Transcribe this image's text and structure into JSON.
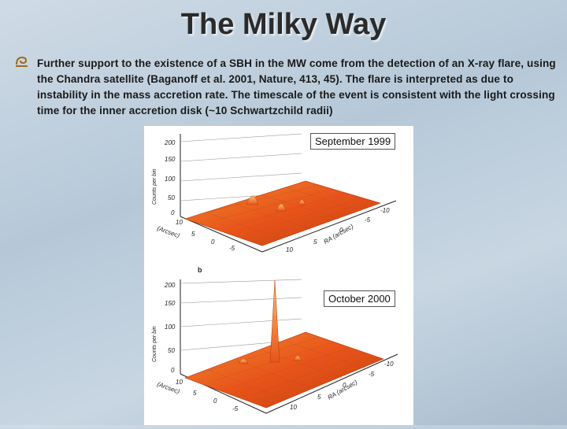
{
  "slide": {
    "title": "The Milky Way",
    "bullet_icon": "scroll-bullet-icon",
    "bullet_text": "Further support to the existence of a SBH in the MW come from the detection of an X-ray flare, using the Chandra satellite (Baganoff et al. 2001, Nature, 413, 45). The flare is interpreted as due to instability in the mass accretion rate. The timescale of the event is consistent with the light crossing time for the inner accretion disk (~10 Schwartzchild radii)"
  },
  "figure": {
    "panel_top_label": "September 1999",
    "panel_bottom_label": "October 2000",
    "panel_b_letter": "b",
    "colors": {
      "surface": "#e8541a",
      "surface_dark": "#b8360c",
      "surface_light": "#f7a13a"
    }
  }
}
